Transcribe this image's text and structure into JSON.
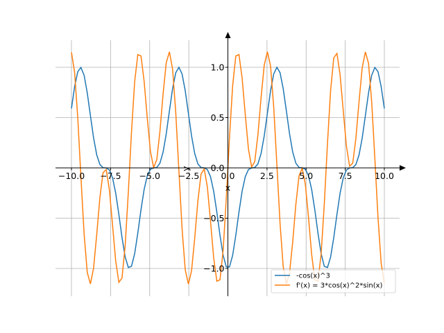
{
  "chart_data": {
    "type": "line",
    "title": "",
    "xlabel": "x",
    "ylabel": "y",
    "xlim": [
      -10.5,
      11
    ],
    "ylim": [
      -1.27,
      1.3
    ],
    "xrange": [
      -10,
      10
    ],
    "n_points": 100,
    "grid": true,
    "legend_position": "lower-right",
    "xticks": [
      -10,
      -7.5,
      -5,
      -2.5,
      0,
      2.5,
      5,
      7.5,
      10
    ],
    "xtick_labels": [
      "−10.0",
      "−7.5",
      "−5.0",
      "−2.5",
      "0.0",
      "2.5",
      "5.0",
      "7.5",
      "10.0"
    ],
    "yticks": [
      -1,
      -0.5,
      0,
      0.5,
      1
    ],
    "ytick_labels": [
      "−1.0",
      "−0.5",
      "0.0",
      "0.5",
      "1.0"
    ],
    "series": [
      {
        "name": "-cos(x)^3",
        "expression": "-cos(x)^3",
        "color": "#1f77b4"
      },
      {
        "name": "f'(x) = 3*cos(x)^2*sin(x)",
        "expression": "3*cos(x)^2*sin(x)",
        "color": "#ff7f0e"
      }
    ]
  }
}
